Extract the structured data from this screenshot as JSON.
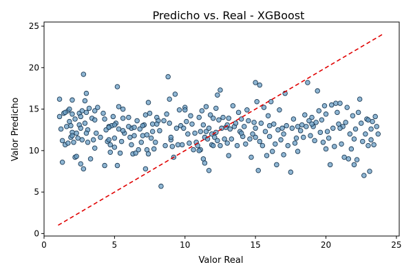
{
  "chart_data": {
    "type": "scatter",
    "title": "Predicho vs. Real - XGBoost",
    "xlabel": "Valor Real",
    "ylabel": "Valor Predicho",
    "xlim": [
      0,
      25.2
    ],
    "ylim": [
      -0.3,
      25.5
    ],
    "xticks": [
      0,
      5,
      10,
      15,
      20,
      25
    ],
    "yticks": [
      0,
      5,
      10,
      15,
      20,
      25
    ],
    "grid": false,
    "colors": {
      "point_fill": "#6a9ec4",
      "point_edge": "#1b3a55",
      "reference_line": "#e00000"
    },
    "reference_line": {
      "x": [
        1.0,
        24.0
      ],
      "y": [
        1.0,
        24.0
      ],
      "style": "dashed"
    },
    "points": [
      [
        1.1,
        14.1
      ],
      [
        1.1,
        16.2
      ],
      [
        1.2,
        12.6
      ],
      [
        1.3,
        11.2
      ],
      [
        1.3,
        8.6
      ],
      [
        1.4,
        14.5
      ],
      [
        1.5,
        10.7
      ],
      [
        1.6,
        12.9
      ],
      [
        1.7,
        14.8
      ],
      [
        1.7,
        10.9
      ],
      [
        1.8,
        13.5
      ],
      [
        1.8,
        15.0
      ],
      [
        1.9,
        11.6
      ],
      [
        1.9,
        13.0
      ],
      [
        2.0,
        12.2
      ],
      [
        2.0,
        16.1
      ],
      [
        2.0,
        14.4
      ],
      [
        2.1,
        11.0
      ],
      [
        2.2,
        13.8
      ],
      [
        2.2,
        9.2
      ],
      [
        2.3,
        12.1
      ],
      [
        2.3,
        9.3
      ],
      [
        2.4,
        11.5
      ],
      [
        2.5,
        14.5
      ],
      [
        2.5,
        13.1
      ],
      [
        2.6,
        12.7
      ],
      [
        2.6,
        8.4
      ],
      [
        2.7,
        14.8
      ],
      [
        2.7,
        11.3
      ],
      [
        2.8,
        19.2
      ],
      [
        2.8,
        7.8
      ],
      [
        2.9,
        13.3
      ],
      [
        2.9,
        16.0
      ],
      [
        3.0,
        16.9
      ],
      [
        3.0,
        14.6
      ],
      [
        3.1,
        12.5
      ],
      [
        3.1,
        11.0
      ],
      [
        3.2,
        15.1
      ],
      [
        3.3,
        9.0
      ],
      [
        3.4,
        13.9
      ],
      [
        3.5,
        11.3
      ],
      [
        3.6,
        10.3
      ],
      [
        3.6,
        14.8
      ],
      [
        3.7,
        12.1
      ],
      [
        3.8,
        15.2
      ],
      [
        4.2,
        14.5
      ],
      [
        4.3,
        13.8
      ],
      [
        4.3,
        8.2
      ],
      [
        4.4,
        12.5
      ],
      [
        4.5,
        11.1
      ],
      [
        4.6,
        12.9
      ],
      [
        4.6,
        11.3
      ],
      [
        4.7,
        10.7
      ],
      [
        4.7,
        9.8
      ],
      [
        4.8,
        13.0
      ],
      [
        4.9,
        14.1
      ],
      [
        5.0,
        10.4
      ],
      [
        5.0,
        11.5
      ],
      [
        5.1,
        13.3
      ],
      [
        5.2,
        17.7
      ],
      [
        5.2,
        8.2
      ],
      [
        5.3,
        15.3
      ],
      [
        5.3,
        12.6
      ],
      [
        5.4,
        9.7
      ],
      [
        5.5,
        11.1
      ],
      [
        5.6,
        13.9
      ],
      [
        5.6,
        15.0
      ],
      [
        5.7,
        12.1
      ],
      [
        6.0,
        14.0
      ],
      [
        6.1,
        11.6
      ],
      [
        6.2,
        12.7
      ],
      [
        6.2,
        10.7
      ],
      [
        6.3,
        9.6
      ],
      [
        6.4,
        12.8
      ],
      [
        6.4,
        11.8
      ],
      [
        6.5,
        9.7
      ],
      [
        6.6,
        13.6
      ],
      [
        6.7,
        10.1
      ],
      [
        6.8,
        12.6
      ],
      [
        6.9,
        11.0
      ],
      [
        7.0,
        11.8
      ],
      [
        7.1,
        13.1
      ],
      [
        7.2,
        14.3
      ],
      [
        7.2,
        7.8
      ],
      [
        7.3,
        10.1
      ],
      [
        7.3,
        11.9
      ],
      [
        7.4,
        15.8
      ],
      [
        7.4,
        9.6
      ],
      [
        7.5,
        14.5
      ],
      [
        7.6,
        11.5
      ],
      [
        7.7,
        13.2
      ],
      [
        7.7,
        12.3
      ],
      [
        7.8,
        10.2
      ],
      [
        7.9,
        11.0
      ],
      [
        8.0,
        14.0
      ],
      [
        8.1,
        13.6
      ],
      [
        8.2,
        12.4
      ],
      [
        8.3,
        5.7
      ],
      [
        8.5,
        13.6
      ],
      [
        8.6,
        10.6
      ],
      [
        8.7,
        14.4
      ],
      [
        8.8,
        18.9
      ],
      [
        8.9,
        16.2
      ],
      [
        8.9,
        13.3
      ],
      [
        9.0,
        11.3
      ],
      [
        9.1,
        10.5
      ],
      [
        9.2,
        9.2
      ],
      [
        9.3,
        16.8
      ],
      [
        9.4,
        12.7
      ],
      [
        9.5,
        10.7
      ],
      [
        9.6,
        14.9
      ],
      [
        9.7,
        13.0
      ],
      [
        9.8,
        10.7
      ],
      [
        9.9,
        12.7
      ],
      [
        10.0,
        15.2
      ],
      [
        10.1,
        13.5
      ],
      [
        10.2,
        12.0
      ],
      [
        10.3,
        10.9
      ],
      [
        10.4,
        14.2
      ],
      [
        10.5,
        13.2
      ],
      [
        10.6,
        10.1
      ],
      [
        10.7,
        12.1
      ],
      [
        10.8,
        11.0
      ],
      [
        10.9,
        10.6
      ],
      [
        11.0,
        14.0
      ],
      [
        11.1,
        12.3
      ],
      [
        11.1,
        10.1
      ],
      [
        11.2,
        14.8
      ],
      [
        11.3,
        13.1
      ],
      [
        11.3,
        9.0
      ],
      [
        11.4,
        11.6
      ],
      [
        11.4,
        8.5
      ],
      [
        11.5,
        12.3
      ],
      [
        11.5,
        15.3
      ],
      [
        11.6,
        11.4
      ],
      [
        11.7,
        7.6
      ],
      [
        11.7,
        12.7
      ],
      [
        11.8,
        14.3
      ],
      [
        11.9,
        12.0
      ],
      [
        11.9,
        10.7
      ],
      [
        12.0,
        13.9
      ],
      [
        12.1,
        11.6
      ],
      [
        12.2,
        15.1
      ],
      [
        12.2,
        12.2
      ],
      [
        12.3,
        16.7
      ],
      [
        12.3,
        11.2
      ],
      [
        12.4,
        13.7
      ],
      [
        12.5,
        17.3
      ],
      [
        12.5,
        10.6
      ],
      [
        12.6,
        12.7
      ],
      [
        12.7,
        14.0
      ],
      [
        12.8,
        11.4
      ],
      [
        12.9,
        12.8
      ],
      [
        13.0,
        10.9
      ],
      [
        13.1,
        13.9
      ],
      [
        13.1,
        9.4
      ],
      [
        13.2,
        12.6
      ],
      [
        13.3,
        11.4
      ],
      [
        13.4,
        15.4
      ],
      [
        13.5,
        12.9
      ],
      [
        13.6,
        13.3
      ],
      [
        13.7,
        10.6
      ],
      [
        13.8,
        14.6
      ],
      [
        13.9,
        12.3
      ],
      [
        14.0,
        13.8
      ],
      [
        14.1,
        11.7
      ],
      [
        14.2,
        12.9
      ],
      [
        14.3,
        10.8
      ],
      [
        14.4,
        14.9
      ],
      [
        14.5,
        13.6
      ],
      [
        14.6,
        11.4
      ],
      [
        14.7,
        9.2
      ],
      [
        14.8,
        12.0
      ],
      [
        14.9,
        13.4
      ],
      [
        15.0,
        18.2
      ],
      [
        15.0,
        11.6
      ],
      [
        15.1,
        15.9
      ],
      [
        15.2,
        7.6
      ],
      [
        15.3,
        17.9
      ],
      [
        15.3,
        11.1
      ],
      [
        15.4,
        13.3
      ],
      [
        15.5,
        10.6
      ],
      [
        15.6,
        15.2
      ],
      [
        15.7,
        12.3
      ],
      [
        15.8,
        9.4
      ],
      [
        15.9,
        14.2
      ],
      [
        16.0,
        11.7
      ],
      [
        16.1,
        15.9
      ],
      [
        16.2,
        9.9
      ],
      [
        16.3,
        13.2
      ],
      [
        16.4,
        10.8
      ],
      [
        16.5,
        8.3
      ],
      [
        16.6,
        12.5
      ],
      [
        16.7,
        14.9
      ],
      [
        16.8,
        11.3
      ],
      [
        16.9,
        12.7
      ],
      [
        17.0,
        9.5
      ],
      [
        17.1,
        16.9
      ],
      [
        17.2,
        13.0
      ],
      [
        17.3,
        10.6
      ],
      [
        17.5,
        7.4
      ],
      [
        17.6,
        12.7
      ],
      [
        17.7,
        13.8
      ],
      [
        17.8,
        10.9
      ],
      [
        17.9,
        11.5
      ],
      [
        18.0,
        9.9
      ],
      [
        18.2,
        12.4
      ],
      [
        18.3,
        13.1
      ],
      [
        18.4,
        11.6
      ],
      [
        18.5,
        14.3
      ],
      [
        18.6,
        12.9
      ],
      [
        18.7,
        18.2
      ],
      [
        18.8,
        13.6
      ],
      [
        18.9,
        11.8
      ],
      [
        19.0,
        14.0
      ],
      [
        19.1,
        12.9
      ],
      [
        19.2,
        11.2
      ],
      [
        19.3,
        13.4
      ],
      [
        19.4,
        17.2
      ],
      [
        19.5,
        14.8
      ],
      [
        19.6,
        12.2
      ],
      [
        19.7,
        13.7
      ],
      [
        19.8,
        11.0
      ],
      [
        19.9,
        15.4
      ],
      [
        20.0,
        10.2
      ],
      [
        20.1,
        12.3
      ],
      [
        20.2,
        11.5
      ],
      [
        20.3,
        8.3
      ],
      [
        20.4,
        15.5
      ],
      [
        20.5,
        12.7
      ],
      [
        20.6,
        10.5
      ],
      [
        20.7,
        15.7
      ],
      [
        20.8,
        14.6
      ],
      [
        20.9,
        13.2
      ],
      [
        21.0,
        15.7
      ],
      [
        21.1,
        10.8
      ],
      [
        21.2,
        12.9
      ],
      [
        21.3,
        9.2
      ],
      [
        21.4,
        13.4
      ],
      [
        21.5,
        15.2
      ],
      [
        21.6,
        9.0
      ],
      [
        21.7,
        12.0
      ],
      [
        21.8,
        10.2
      ],
      [
        21.9,
        14.2
      ],
      [
        22.0,
        11.4
      ],
      [
        22.1,
        12.6
      ],
      [
        22.2,
        8.9
      ],
      [
        22.3,
        14.6
      ],
      [
        22.4,
        16.2
      ],
      [
        22.5,
        13.3
      ],
      [
        22.6,
        11.1
      ],
      [
        22.7,
        7.0
      ],
      [
        22.8,
        12.0
      ],
      [
        22.9,
        13.8
      ],
      [
        23.0,
        10.6
      ],
      [
        23.1,
        7.5
      ],
      [
        23.2,
        12.6
      ],
      [
        23.3,
        13.5
      ],
      [
        23.4,
        10.7
      ],
      [
        23.5,
        14.1
      ],
      [
        23.6,
        12.9
      ],
      [
        23.7,
        12.0
      ],
      [
        23.0,
        13.7
      ],
      [
        23.2,
        11.3
      ],
      [
        22.0,
        8.3
      ],
      [
        21.0,
        12.7
      ],
      [
        20.0,
        14.4
      ],
      [
        19.0,
        13.2
      ],
      [
        18.0,
        12.9
      ],
      [
        17.0,
        12.0
      ],
      [
        16.0,
        13.0
      ],
      [
        15.0,
        12.7
      ],
      [
        14.0,
        12.1
      ],
      [
        13.0,
        13.1
      ],
      [
        12.0,
        10.6
      ],
      [
        11.0,
        10.0
      ],
      [
        10.0,
        14.9
      ],
      [
        9.0,
        11.6
      ],
      [
        8.0,
        13.2
      ],
      [
        7.0,
        13.0
      ],
      [
        6.0,
        12.9
      ],
      [
        5.0,
        13.1
      ],
      [
        4.0,
        11.6
      ],
      [
        3.0,
        12.1
      ],
      [
        2.0,
        11.8
      ],
      [
        1.5,
        14.6
      ],
      [
        2.6,
        14.1
      ],
      [
        3.6,
        13.7
      ],
      [
        4.6,
        12.8
      ],
      [
        5.6,
        12.4
      ]
    ]
  }
}
